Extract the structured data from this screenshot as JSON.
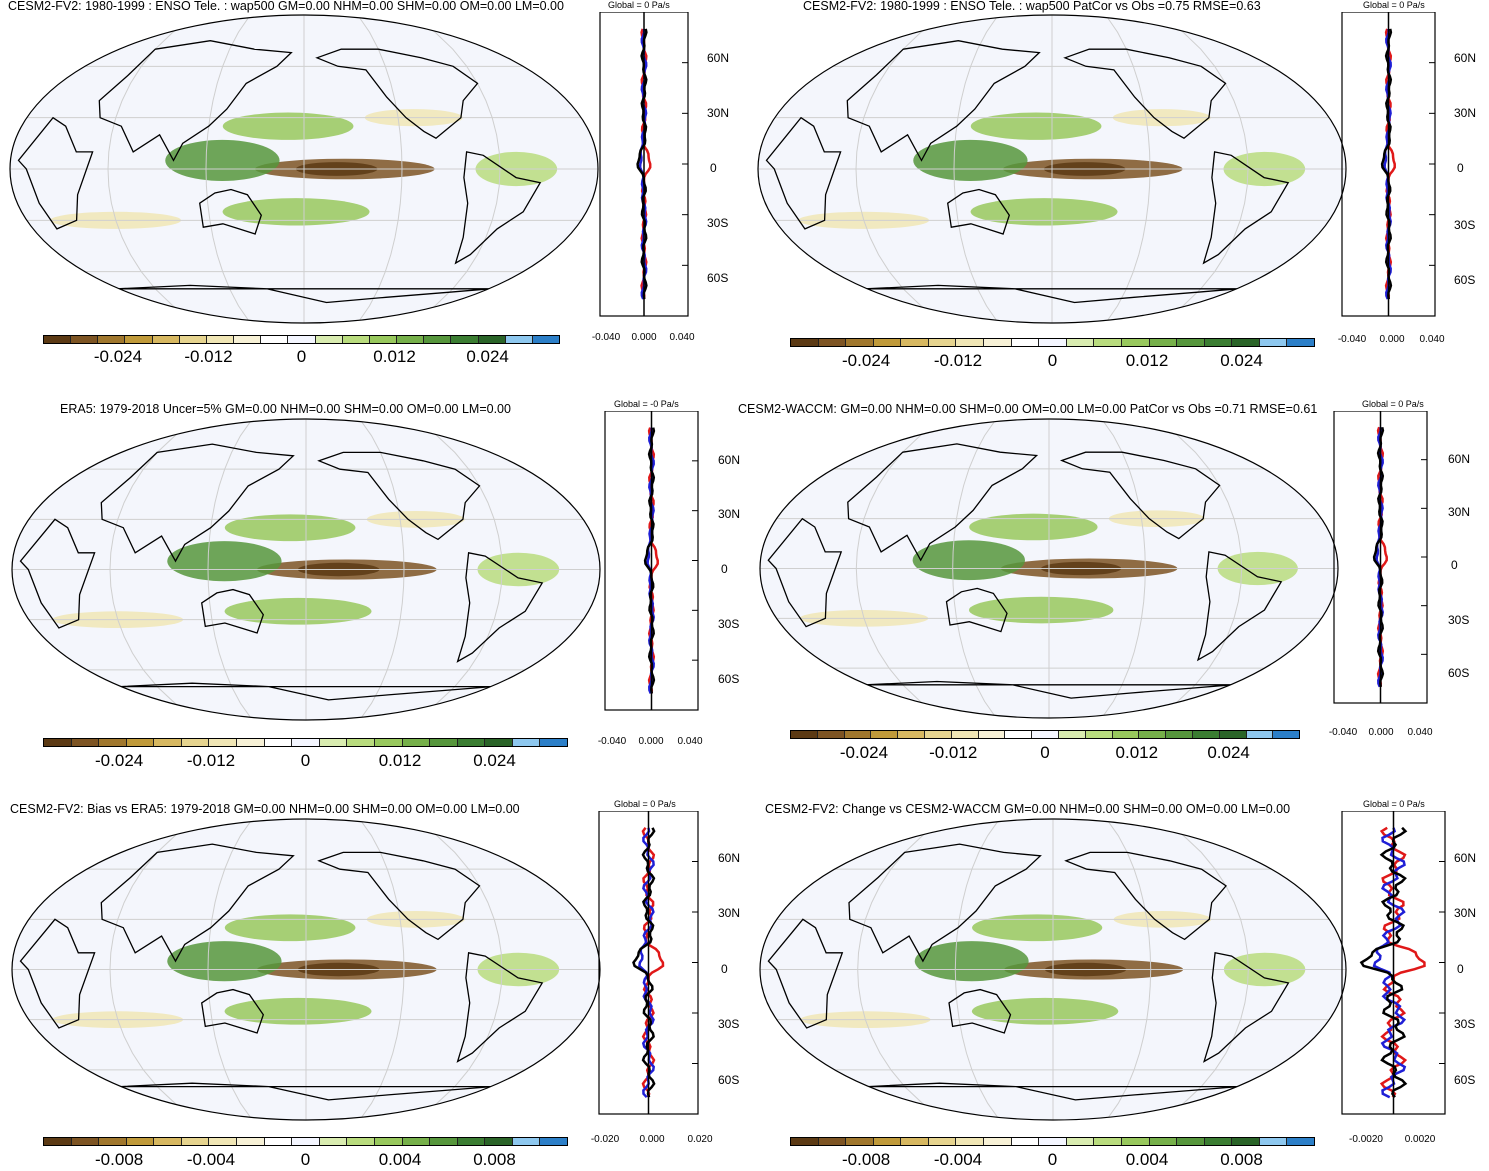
{
  "chart_data": [
    {
      "type": "heatmap",
      "title": "CESM2-FV2: 1980-1999 : ENSO Tele. : wap500 GM=0.00 NHM=0.00 SHM=0.00 OM=0.00 LM=0.00",
      "colorbar_ticks": [
        "-0.024",
        "-0.012",
        "0",
        "0.012",
        "0.024"
      ],
      "colorbar_range": [
        -0.03,
        0.03
      ],
      "profile": {
        "title": "Global = 0 Pa/s",
        "xticks": [
          "-0.040",
          "0.000",
          "0.040"
        ],
        "xlim": [
          -0.05,
          0.05
        ],
        "yticks": [
          "60N",
          "30N",
          "0",
          "30S",
          "60S"
        ],
        "ylim": [
          -90,
          90
        ]
      }
    },
    {
      "type": "heatmap",
      "title": "CESM2-FV2: 1980-1999 : ENSO Tele. : wap500 PatCor vs Obs =0.75 RMSE=0.63",
      "colorbar_ticks": [
        "-0.024",
        "-0.012",
        "0",
        "0.012",
        "0.024"
      ],
      "colorbar_range": [
        -0.03,
        0.03
      ],
      "profile": {
        "title": "Global = 0 Pa/s",
        "xticks": [
          "-0.040",
          "0.000",
          "0.040"
        ],
        "xlim": [
          -0.05,
          0.05
        ],
        "yticks": [
          "60N",
          "30N",
          "0",
          "30S",
          "60S"
        ],
        "ylim": [
          -90,
          90
        ]
      }
    },
    {
      "type": "heatmap",
      "title": "ERA5: 1979-2018 Uncer=5% GM=0.00 NHM=0.00 SHM=0.00 OM=0.00 LM=0.00",
      "colorbar_ticks": [
        "-0.024",
        "-0.012",
        "0",
        "0.012",
        "0.024"
      ],
      "colorbar_range": [
        -0.03,
        0.03
      ],
      "profile": {
        "title": "Global = -0 Pa/s",
        "xticks": [
          "-0.040",
          "0.000",
          "0.040"
        ],
        "xlim": [
          -0.05,
          0.05
        ],
        "yticks": [
          "60N",
          "30N",
          "0",
          "30S",
          "60S"
        ],
        "ylim": [
          -90,
          90
        ]
      }
    },
    {
      "type": "heatmap",
      "title": "CESM2-WACCM: GM=0.00 NHM=0.00 SHM=0.00 OM=0.00 LM=0.00 PatCor vs Obs =0.71 RMSE=0.61",
      "colorbar_ticks": [
        "-0.024",
        "-0.012",
        "0",
        "0.012",
        "0.024"
      ],
      "colorbar_range": [
        -0.03,
        0.03
      ],
      "profile": {
        "title": "Global = 0 Pa/s",
        "xticks": [
          "-0.040",
          "0.000",
          "0.040"
        ],
        "xlim": [
          -0.05,
          0.05
        ],
        "yticks": [
          "60N",
          "30N",
          "0",
          "30S",
          "60S"
        ],
        "ylim": [
          -90,
          90
        ]
      }
    },
    {
      "type": "heatmap",
      "title": "CESM2-FV2: Bias vs ERA5: 1979-2018 GM=0.00 NHM=0.00 SHM=0.00 OM=0.00 LM=0.00",
      "colorbar_ticks": [
        "-0.008",
        "-0.004",
        "0",
        "0.004",
        "0.008"
      ],
      "colorbar_range": [
        -0.01,
        0.01
      ],
      "profile": {
        "title": "Global = 0 Pa/s",
        "xticks": [
          "-0.020",
          "0.000",
          "0.020"
        ],
        "xlim": [
          -0.02,
          0.02
        ],
        "yticks": [
          "60N",
          "30N",
          "0",
          "30S",
          "60S"
        ],
        "ylim": [
          -90,
          90
        ]
      }
    },
    {
      "type": "heatmap",
      "title": "CESM2-FV2: Change vs CESM2-WACCM GM=0.00 NHM=0.00 SHM=0.00 OM=0.00 LM=0.00",
      "colorbar_ticks": [
        "-0.008",
        "-0.004",
        "0",
        "0.004",
        "0.008"
      ],
      "colorbar_range": [
        -0.01,
        0.01
      ],
      "profile": {
        "title": "Global = 0 Pa/s",
        "xticks": [
          "-0.0020",
          "0.0020"
        ],
        "xlim": [
          -0.003,
          0.003
        ],
        "yticks": [
          "60N",
          "30N",
          "0",
          "30S",
          "60S"
        ],
        "ylim": [
          -90,
          90
        ]
      }
    }
  ],
  "colors": {
    "palette": [
      "#5c3a14",
      "#7d5423",
      "#a0772d",
      "#c09a3a",
      "#d7b861",
      "#e6d48f",
      "#f0e6b5",
      "#f7f1d6",
      "#ffffff",
      "#f4f6ff",
      "#d9ecb0",
      "#b9dc7e",
      "#98c85d",
      "#76b04a",
      "#56963c",
      "#3b7d32",
      "#2a6428",
      "#8ec8ef",
      "#2c7fc8"
    ],
    "ocean": "#f4f6fc",
    "land_outline": "#000000",
    "grid": "#cfcfcf",
    "profile_total": "#000000",
    "profile_ocean": "#1f1fd6",
    "profile_land": "#e01818"
  }
}
